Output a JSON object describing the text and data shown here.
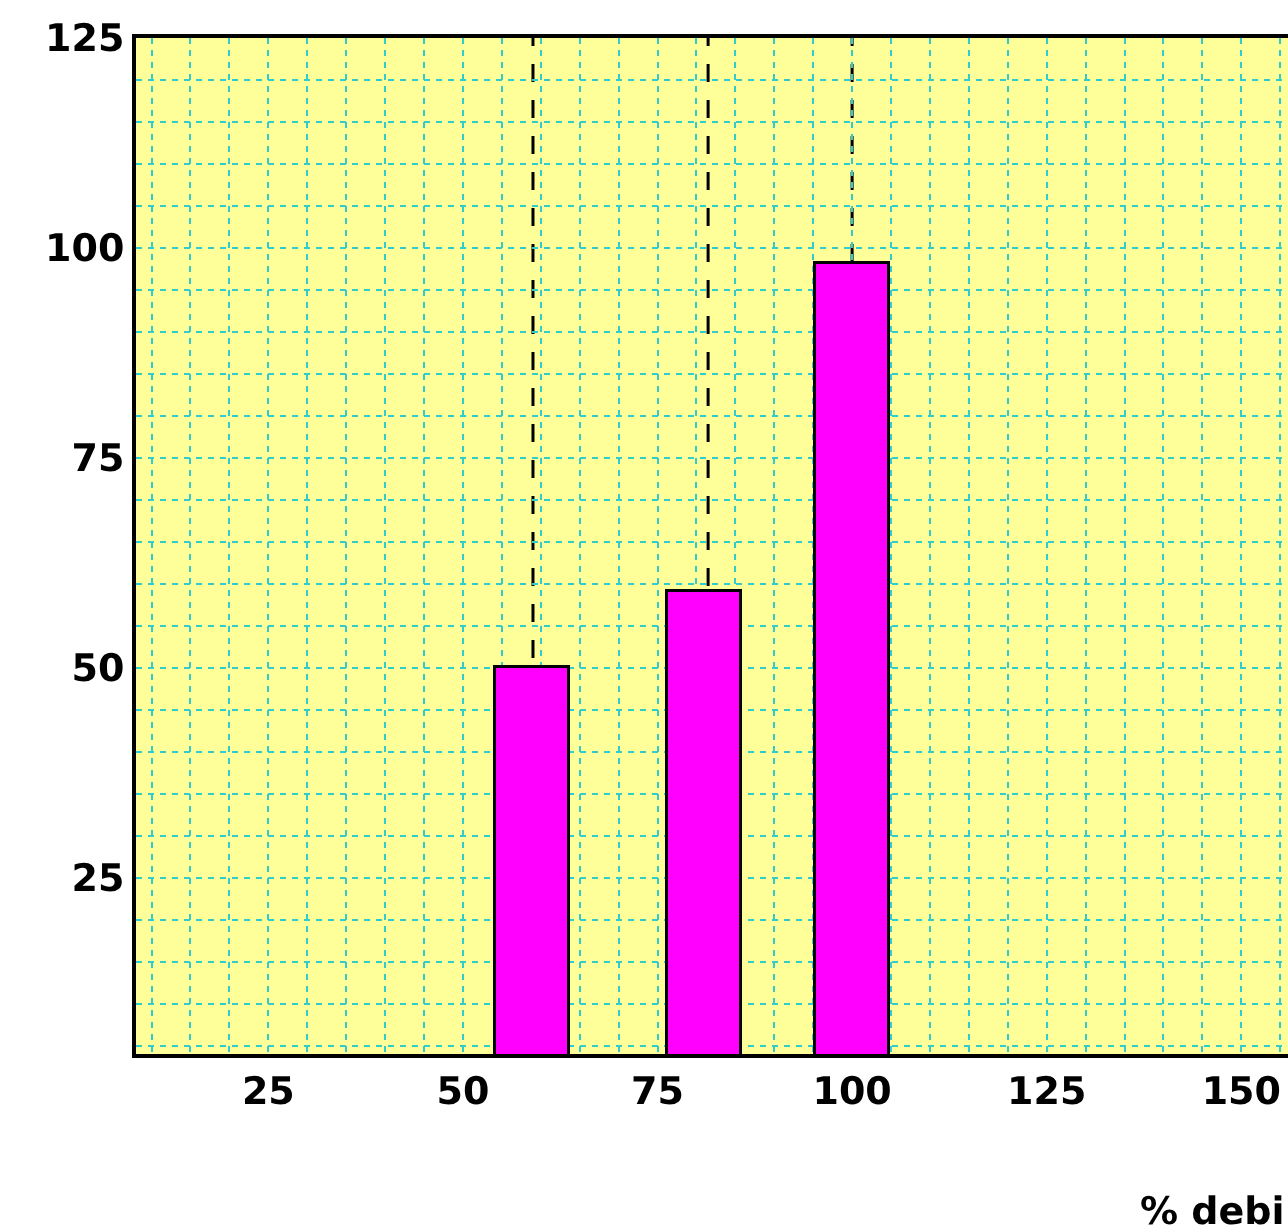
{
  "chart_data": {
    "type": "bar",
    "xlabel": "% debi",
    "x": [
      59,
      81,
      100
    ],
    "series": [
      {
        "color": "#ff00ff",
        "values": [
          50,
          59,
          98
        ]
      }
    ],
    "xlim": [
      8,
      156
    ],
    "xticks": [
      25,
      50,
      75,
      100,
      125,
      150
    ],
    "ylim": [
      4,
      125
    ],
    "yticks": [
      25,
      50,
      75,
      100,
      125
    ],
    "ref_lines": [
      {
        "axis": "x",
        "value": 59,
        "label": null,
        "line_style": "dashed",
        "color": "#000000"
      },
      {
        "axis": "x",
        "value": 81.5,
        "label": null,
        "line_style": "dashed",
        "color": "#000000"
      },
      {
        "axis": "x",
        "value": 100,
        "label": null,
        "line_style": "dashed",
        "color": "#000000"
      }
    ],
    "grid": true
  }
}
